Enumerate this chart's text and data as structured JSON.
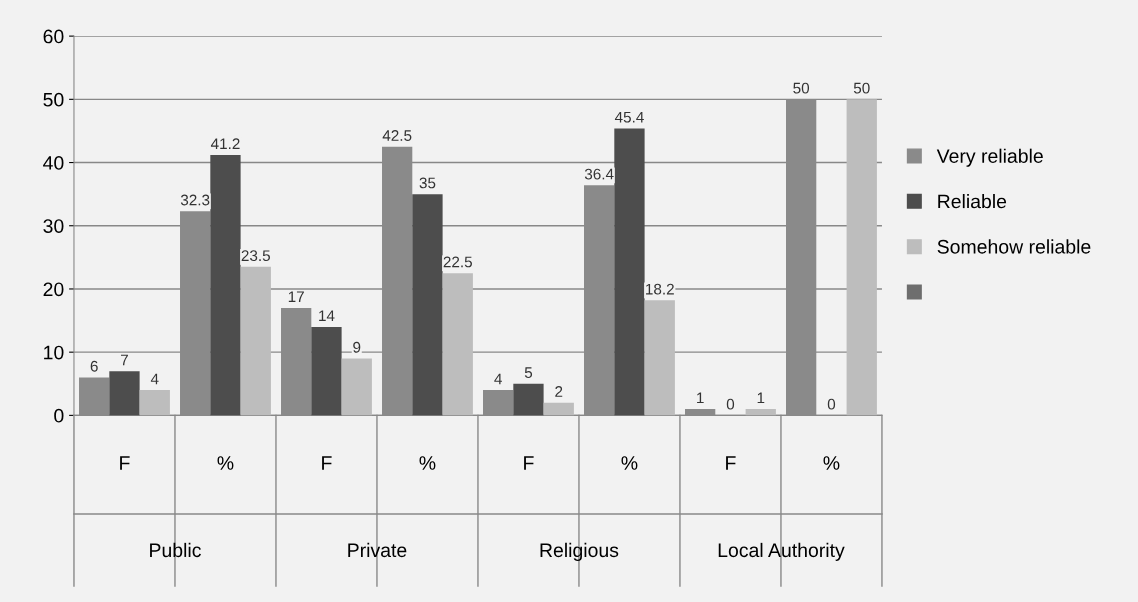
{
  "chart_data": {
    "type": "bar",
    "categories": [
      "F",
      "%",
      "F",
      "%",
      "F",
      "%",
      "F",
      "%"
    ],
    "annotations": [
      "Public",
      "Private",
      "Religious",
      "Local Authority"
    ],
    "series": [
      {
        "name": "Very reliable",
        "color": "#8a8a8a",
        "values": [
          6,
          32.3,
          17,
          42.5,
          4,
          36.4,
          1,
          50
        ]
      },
      {
        "name": "Reliable",
        "color": "#4d4d4d",
        "values": [
          7,
          41.2,
          14,
          35,
          5,
          45.4,
          0,
          0
        ]
      },
      {
        "name": "Somehow reliable",
        "color": "#bdbdbd",
        "values": [
          4,
          23.5,
          9,
          22.5,
          2,
          18.2,
          1,
          50
        ]
      },
      {
        "color": "#6e6e6e",
        "values": [
          null,
          null,
          null,
          null,
          null,
          null,
          null,
          null
        ]
      }
    ],
    "ylim": [
      0,
      60
    ],
    "yticks": [
      0,
      10,
      20,
      30,
      40,
      50,
      60
    ],
    "grid": "y",
    "legend": "right",
    "data_labels": true
  }
}
